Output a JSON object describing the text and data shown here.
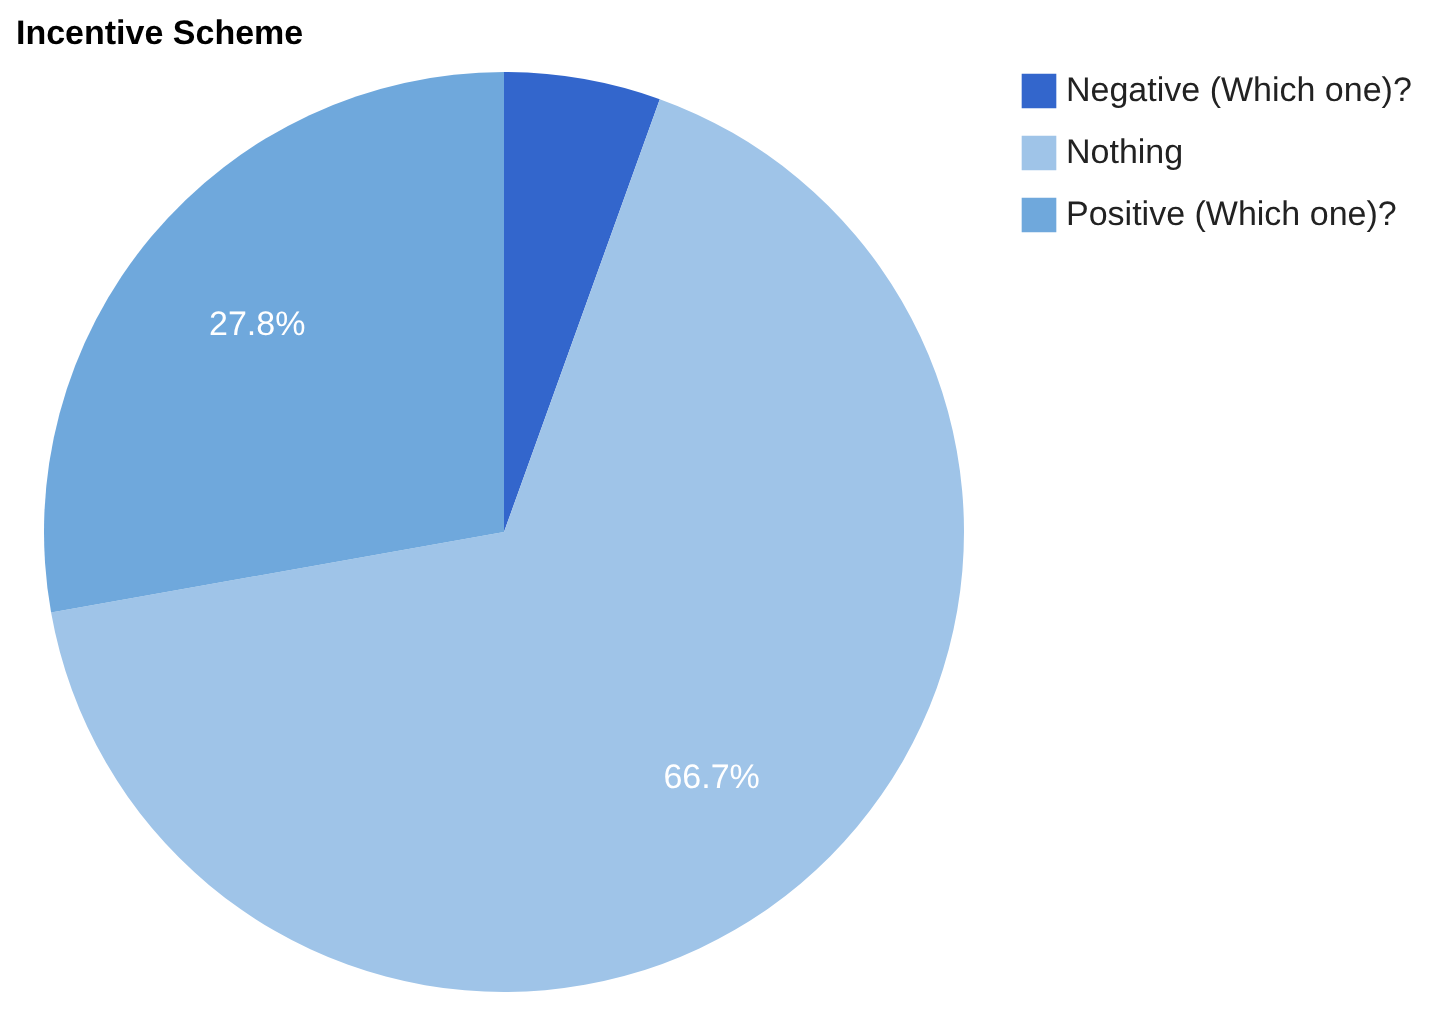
{
  "chart_data": {
    "type": "pie",
    "title": "Incentive Scheme",
    "categories": [
      "Negative (Which one)?",
      "Nothing",
      "Positive (Which one)?"
    ],
    "values": [
      5.5,
      66.7,
      27.8
    ],
    "colors": [
      "#3366cc",
      "#9fc4e8",
      "#6fa8dc"
    ],
    "value_labels": [
      null,
      "66.7%",
      "27.8%"
    ],
    "legend": "top right"
  }
}
